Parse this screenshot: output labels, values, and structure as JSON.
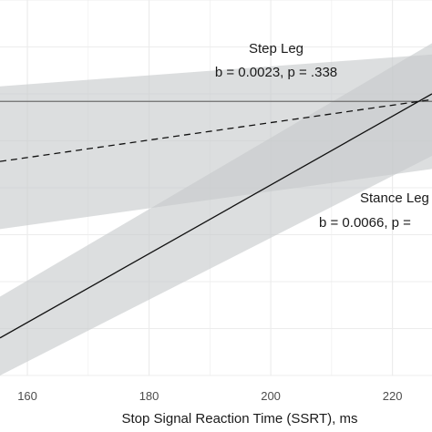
{
  "chart_data": {
    "type": "line",
    "xlabel": "Stop Signal Reaction Time (SSRT), ms",
    "ylabel": "",
    "xlim": [
      155.5,
      226.5
    ],
    "ylim": [
      -10,
      10
    ],
    "x_ticks": [
      160,
      180,
      200,
      220
    ],
    "x_tick_labels": [
      "160",
      "180",
      "200",
      "220"
    ],
    "grid": true,
    "reference_line": {
      "y": 4.6
    },
    "series": [
      {
        "name": "Step Leg",
        "style": "dashed",
        "x": [
          155.5,
          226.5
        ],
        "y": [
          1.4,
          4.7
        ],
        "band_lower": [
          -2.2,
          1.0
        ],
        "band_upper": [
          5.4,
          7.1
        ]
      },
      {
        "name": "Stance Leg",
        "style": "solid",
        "x": [
          155.5,
          226.5
        ],
        "y": [
          -8.0,
          5.0
        ],
        "band_lower": [
          -10.0,
          1.7
        ],
        "band_upper": [
          -5.8,
          7.7
        ]
      }
    ],
    "annotations": [
      {
        "series": "Step Leg",
        "label": "Step Leg",
        "stat": "b = 0.0023, p = .338"
      },
      {
        "series": "Stance Leg",
        "label": "Stance Leg",
        "stat": "b = 0.0066, p = "
      }
    ],
    "colors": {
      "band": "#c6c9cc",
      "line": "#111111",
      "reference": "#6e6e6e",
      "grid": "#ececec"
    }
  }
}
